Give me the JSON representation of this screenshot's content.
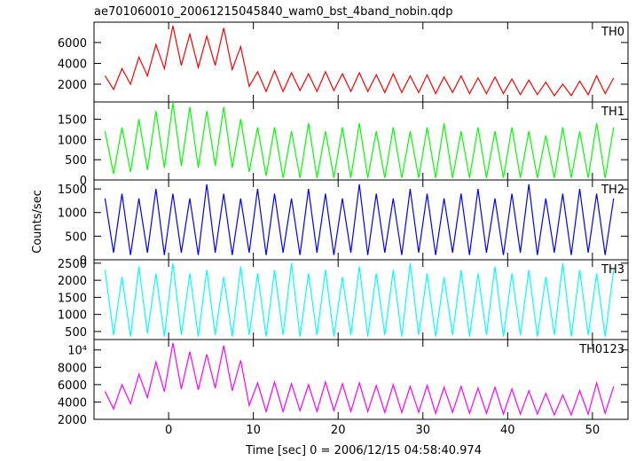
{
  "chart_data": {
    "type": "line",
    "title": "ae701060010_20061215045840_wam0_bst_4band_nobin.qdp",
    "xlabel": "Time [sec] 0 = 2006/12/15 04:58:40.974",
    "ylabel": "Counts/sec",
    "xlim": [
      -8.8,
      54.2
    ],
    "xticks": [
      0,
      10,
      20,
      30,
      40,
      50
    ],
    "x": [
      -7.5,
      -6.5,
      -5.5,
      -4.5,
      -3.5,
      -2.5,
      -1.5,
      -0.5,
      0.5,
      1.5,
      2.5,
      3.5,
      4.5,
      5.5,
      6.5,
      7.5,
      8.5,
      9.5,
      10.5,
      11.5,
      12.5,
      13.5,
      14.5,
      15.5,
      16.5,
      17.5,
      18.5,
      19.5,
      20.5,
      21.5,
      22.5,
      23.5,
      24.5,
      25.5,
      26.5,
      27.5,
      28.5,
      29.5,
      30.5,
      31.5,
      32.5,
      33.5,
      34.5,
      35.5,
      36.5,
      37.5,
      38.5,
      39.5,
      40.5,
      41.5,
      42.5,
      43.5,
      44.5,
      45.5,
      46.5,
      47.5,
      48.5,
      49.5,
      50.5,
      51.5,
      52.5
    ],
    "series": [
      {
        "name": "TH0",
        "color": "#ff0000",
        "ylim": [
          300,
          7950
        ],
        "yticks": [
          2000,
          4000,
          6000
        ],
        "values": [
          2800,
          1500,
          3500,
          2000,
          4600,
          2800,
          5800,
          3500,
          7600,
          3800,
          6800,
          3600,
          6600,
          3800,
          7400,
          3400,
          5600,
          1800,
          3200,
          1300,
          3300,
          1300,
          3100,
          1400,
          3000,
          1300,
          3200,
          1400,
          3000,
          1300,
          3100,
          1300,
          2900,
          1200,
          3000,
          1200,
          2800,
          1200,
          2900,
          1100,
          2700,
          1200,
          2800,
          1100,
          2600,
          1100,
          2700,
          1100,
          2500,
          1000,
          2400,
          1000,
          2200,
          900,
          2000,
          900,
          2300,
          1000,
          2800,
          1100,
          2600
        ]
      },
      {
        "name": "TH1",
        "color": "#00ff00",
        "ylim": [
          0,
          1925
        ],
        "yticks": [
          0,
          500,
          1000,
          1500
        ],
        "values": [
          1200,
          150,
          1300,
          200,
          1500,
          250,
          1700,
          300,
          1900,
          350,
          1800,
          300,
          1700,
          350,
          1800,
          300,
          1500,
          200,
          1300,
          100,
          1300,
          50,
          1200,
          50,
          1400,
          50,
          1200,
          50,
          1300,
          50,
          1400,
          50,
          1200,
          50,
          1300,
          50,
          1200,
          50,
          1300,
          50,
          1400,
          50,
          1200,
          50,
          1300,
          50,
          1200,
          50,
          1300,
          50,
          1200,
          50,
          1100,
          50,
          1300,
          50,
          1200,
          50,
          1400,
          50,
          1300
        ]
      },
      {
        "name": "TH2",
        "color": "#0000ff",
        "ylim": [
          0,
          1690
        ],
        "yticks": [
          0,
          500,
          1000,
          1500
        ],
        "values": [
          1300,
          150,
          1400,
          100,
          1300,
          150,
          1500,
          100,
          1400,
          150,
          1300,
          100,
          1600,
          150,
          1400,
          100,
          1300,
          150,
          1500,
          100,
          1400,
          150,
          1300,
          100,
          1500,
          150,
          1400,
          100,
          1300,
          150,
          1600,
          100,
          1400,
          150,
          1300,
          100,
          1500,
          150,
          1400,
          100,
          1300,
          150,
          1400,
          100,
          1500,
          150,
          1300,
          100,
          1400,
          150,
          1600,
          100,
          1300,
          150,
          1400,
          100,
          1500,
          150,
          1400,
          100,
          1300
        ]
      },
      {
        "name": "TH3",
        "color": "#00ffff",
        "ylim": [
          265,
          2600
        ],
        "yticks": [
          500,
          1000,
          1500,
          2000,
          2500
        ],
        "values": [
          2300,
          400,
          2100,
          350,
          2400,
          450,
          2200,
          350,
          2500,
          400,
          2200,
          350,
          2300,
          400,
          2100,
          350,
          2400,
          400,
          2200,
          350,
          2300,
          400,
          2500,
          350,
          2200,
          400,
          2300,
          350,
          2100,
          400,
          2400,
          350,
          2200,
          400,
          2300,
          350,
          2500,
          400,
          2200,
          350,
          2100,
          400,
          2300,
          350,
          2200,
          400,
          2400,
          350,
          2200,
          400,
          2300,
          350,
          2100,
          400,
          2500,
          350,
          2300,
          400,
          2200,
          350,
          2300
        ]
      },
      {
        "name": "TH0123",
        "color": "#ff00ff",
        "ylim": [
          2000,
          11200
        ],
        "yticks": [
          2000,
          4000,
          6000,
          8000,
          {
            "value": 10000,
            "label": "10⁴"
          }
        ],
        "values": [
          5200,
          3200,
          6000,
          3800,
          7200,
          4500,
          8600,
          5200,
          10800,
          5500,
          9800,
          5400,
          9500,
          5600,
          10500,
          5300,
          8800,
          3600,
          6200,
          2900,
          6300,
          2900,
          6100,
          3000,
          6000,
          2900,
          6300,
          3000,
          6100,
          2900,
          6200,
          2900,
          5900,
          2800,
          6000,
          2800,
          5800,
          2800,
          5900,
          2700,
          5700,
          2800,
          5800,
          2700,
          5600,
          2700,
          5700,
          2600,
          5500,
          2600,
          5300,
          2600,
          5000,
          2500,
          4800,
          2500,
          5300,
          2600,
          6200,
          2700,
          5800
        ]
      }
    ]
  }
}
